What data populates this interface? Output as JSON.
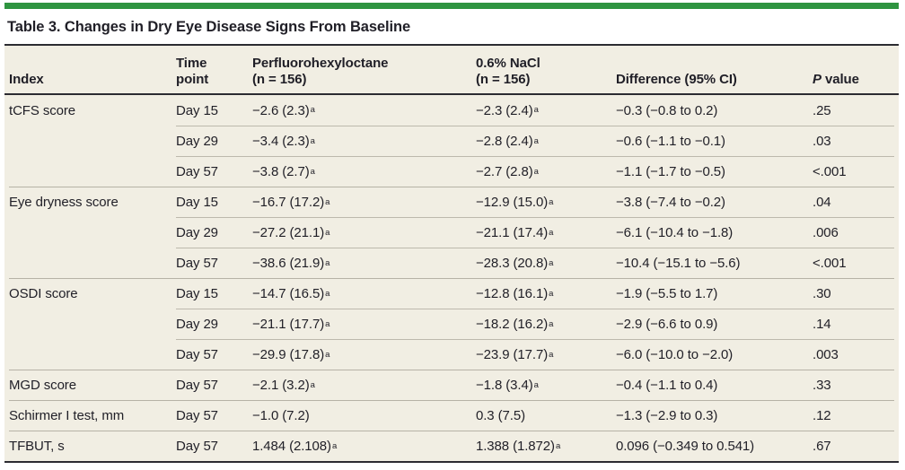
{
  "colors": {
    "accent_green": "#2e9440",
    "table_background": "#f1eee3",
    "rule_dark": "#2c2b31",
    "separator_gray": "#b6b2a6",
    "text": "#201f27"
  },
  "title": "Table 3. Changes in Dry Eye Disease Signs From Baseline",
  "table": {
    "headers": {
      "index": "Index",
      "time_line1": "Time",
      "time_line2": "point",
      "pfho_line1": "Perfluorohexyloctane",
      "pfho_line2": "(n = 156)",
      "nacl_line1": "0.6% NaCl",
      "nacl_line2": "(n = 156)",
      "difference": "Difference (95% CI)",
      "p_italic": "P",
      "p_rest": "value"
    },
    "rows": [
      {
        "index": "tCFS score",
        "time": "Day 15",
        "pfho": "−2.6 (2.3)",
        "pfho_sup": "a",
        "nacl": "−2.3 (2.4)",
        "nacl_sup": "a",
        "diff": "−0.3 (−0.8 to 0.2)",
        "p": ".25"
      },
      {
        "index": "",
        "time": "Day 29",
        "pfho": "−3.4 (2.3)",
        "pfho_sup": "a",
        "nacl": "−2.8 (2.4)",
        "nacl_sup": "a",
        "diff": "−0.6 (−1.1 to −0.1)",
        "p": ".03"
      },
      {
        "index": "",
        "time": "Day 57",
        "pfho": "−3.8 (2.7)",
        "pfho_sup": "a",
        "nacl": "−2.7 (2.8)",
        "nacl_sup": "a",
        "diff": "−1.1 (−1.7 to −0.5)",
        "p": "<.001"
      },
      {
        "index": "Eye dryness score",
        "time": "Day 15",
        "pfho": "−16.7 (17.2)",
        "pfho_sup": "a",
        "nacl": "−12.9 (15.0)",
        "nacl_sup": "a",
        "diff": "−3.8 (−7.4 to −0.2)",
        "p": ".04"
      },
      {
        "index": "",
        "time": "Day 29",
        "pfho": "−27.2 (21.1)",
        "pfho_sup": "a",
        "nacl": "−21.1 (17.4)",
        "nacl_sup": "a",
        "diff": "−6.1 (−10.4 to −1.8)",
        "p": ".006"
      },
      {
        "index": "",
        "time": "Day 57",
        "pfho": "−38.6 (21.9)",
        "pfho_sup": "a",
        "nacl": "−28.3 (20.8)",
        "nacl_sup": "a",
        "diff": "−10.4 (−15.1 to −5.6)",
        "p": "<.001"
      },
      {
        "index": "OSDI score",
        "time": "Day 15",
        "pfho": "−14.7 (16.5)",
        "pfho_sup": "a",
        "nacl": "−12.8 (16.1)",
        "nacl_sup": "a",
        "diff": "−1.9 (−5.5 to 1.7)",
        "p": ".30"
      },
      {
        "index": "",
        "time": "Day 29",
        "pfho": "−21.1 (17.7)",
        "pfho_sup": "a",
        "nacl": "−18.2 (16.2)",
        "nacl_sup": "a",
        "diff": "−2.9 (−6.6 to 0.9)",
        "p": ".14"
      },
      {
        "index": "",
        "time": "Day 57",
        "pfho": "−29.9 (17.8)",
        "pfho_sup": "a",
        "nacl": "−23.9 (17.7)",
        "nacl_sup": "a",
        "diff": "−6.0 (−10.0 to −2.0)",
        "p": ".003"
      },
      {
        "index": "MGD score",
        "time": "Day 57",
        "pfho": "−2.1 (3.2)",
        "pfho_sup": "a",
        "nacl": "−1.8 (3.4)",
        "nacl_sup": "a",
        "diff": "−0.4 (−1.1 to 0.4)",
        "p": ".33"
      },
      {
        "index": "Schirmer I test, mm",
        "time": "Day 57",
        "pfho": "−1.0 (7.2)",
        "pfho_sup": "",
        "nacl": "0.3 (7.5)",
        "nacl_sup": "",
        "diff": "−1.3 (−2.9 to 0.3)",
        "p": ".12"
      },
      {
        "index": "TFBUT, s",
        "time": "Day 57",
        "pfho": "1.484 (2.108)",
        "pfho_sup": "a",
        "nacl": "1.388 (1.872)",
        "nacl_sup": "a",
        "diff": "0.096 (−0.349 to 0.541)",
        "p": ".67"
      }
    ]
  }
}
